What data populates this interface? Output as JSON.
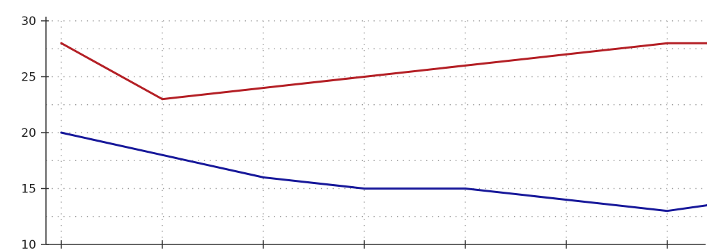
{
  "chart_data": {
    "type": "line",
    "x": [
      1,
      2,
      3,
      4,
      5,
      6,
      7,
      8
    ],
    "series": [
      {
        "color": "#b41f25",
        "values": [
          28,
          23,
          24,
          25,
          26,
          27,
          28,
          28
        ]
      },
      {
        "color": "#17189a",
        "values": [
          20,
          18,
          16,
          15,
          15,
          14,
          13,
          13.5
        ]
      }
    ],
    "ylim": [
      10,
      30
    ],
    "xlim": [
      1,
      7.4
    ],
    "y_ticks": [
      10,
      15,
      20,
      25,
      30
    ],
    "y_tick_labels": [
      "10",
      "15",
      "20",
      "25",
      "30"
    ],
    "grid": true,
    "colors": {
      "grid": "#9a9a9a",
      "axis": "#333333",
      "text": "#222222"
    }
  }
}
